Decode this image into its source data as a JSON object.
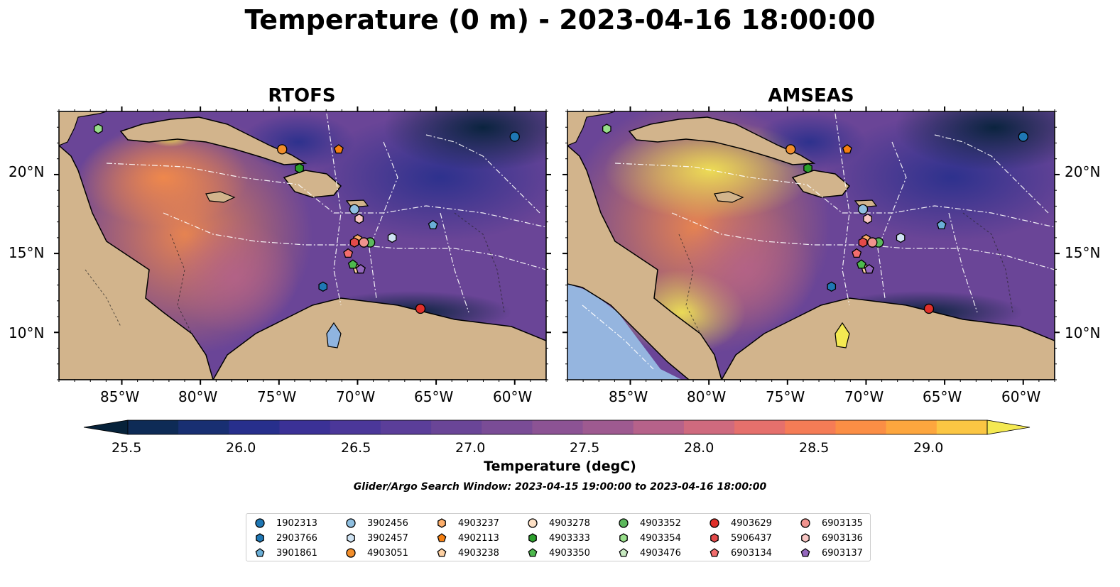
{
  "title": "Temperature (0 m) - 2023-04-16 18:00:00",
  "panels": [
    {
      "title": "RTOFS"
    },
    {
      "title": "AMSEAS"
    }
  ],
  "lat_labels": [
    "20°N",
    "15°N",
    "10°N"
  ],
  "lon_labels": [
    "85°W",
    "80°W",
    "75°W",
    "70°W",
    "65°W",
    "60°W"
  ],
  "map_extent": {
    "lon": [
      -89,
      -58
    ],
    "lat": [
      7,
      24
    ]
  },
  "colorbar": {
    "label": "Temperature (degC)",
    "range": [
      25.25,
      29.25
    ],
    "ticks": [
      "25.5",
      "26.0",
      "26.5",
      "27.0",
      "27.5",
      "28.0",
      "28.5",
      "29.0"
    ],
    "colors": [
      "#06223a",
      "#0e2b56",
      "#182f72",
      "#272f8c",
      "#3b3196",
      "#4b3799",
      "#5b3e99",
      "#6a4597",
      "#7a4c96",
      "#8c5394",
      "#9e5a90",
      "#b6628a",
      "#cf6a7e",
      "#e5706c",
      "#f57c56",
      "#fb8e45",
      "#fda63e",
      "#fbc643",
      "#f4e952"
    ],
    "extend": "both"
  },
  "search_window": "Glider/Argo Search Window: 2023-04-15 19:00:00 to 2023-04-16 18:00:00",
  "markers": [
    {
      "id": "1902313",
      "shape": "circle",
      "color": "#1f77b4",
      "lon": -60.0,
      "lat": 22.4
    },
    {
      "id": "2903766",
      "shape": "hexagon",
      "color": "#1f77b4",
      "lon": -72.2,
      "lat": 12.9
    },
    {
      "id": "3901861",
      "shape": "pentagon",
      "color": "#6aaed6",
      "lon": -65.2,
      "lat": 16.8
    },
    {
      "id": "3902456",
      "shape": "circle",
      "color": "#8fbfe0",
      "lon": -70.2,
      "lat": 17.8
    },
    {
      "id": "3902457",
      "shape": "hexagon",
      "color": "#cfe3f3",
      "lon": -67.8,
      "lat": 16.0
    },
    {
      "id": "4903051",
      "shape": "circle",
      "color": "#f28e2b",
      "lon": -74.8,
      "lat": 21.6
    },
    {
      "id": "4903237",
      "shape": "hexagon",
      "color": "#fdae6b",
      "lon": -70.0,
      "lat": 15.9
    },
    {
      "id": "4902113",
      "shape": "pentagon",
      "color": "#f57f11",
      "lon": -71.2,
      "lat": 21.6
    },
    {
      "id": "4903238",
      "shape": "pentagon",
      "color": "#fdd0a2",
      "lon": -70.0,
      "lat": 14.0
    },
    {
      "id": "4903278",
      "shape": "circle",
      "color": "#fde0c5",
      "lon": -69.6,
      "lat": 15.7
    },
    {
      "id": "4903333",
      "shape": "hexagon",
      "color": "#2ca02c",
      "lon": -73.7,
      "lat": 20.4
    },
    {
      "id": "4903350",
      "shape": "pentagon",
      "color": "#4db84d",
      "lon": -70.3,
      "lat": 14.3
    },
    {
      "id": "4903352",
      "shape": "circle",
      "color": "#5cb85c",
      "lon": -69.2,
      "lat": 15.7
    },
    {
      "id": "4903354",
      "shape": "hexagon",
      "color": "#98df8a",
      "lon": -86.5,
      "lat": 22.9
    },
    {
      "id": "4903476",
      "shape": "pentagon",
      "color": "#c7e9c0",
      "lon": -69.8,
      "lat": 14.0
    },
    {
      "id": "4903629",
      "shape": "circle",
      "color": "#e0302a",
      "lon": -66.0,
      "lat": 11.5
    },
    {
      "id": "5906437",
      "shape": "hexagon",
      "color": "#e34a4a",
      "lon": -70.2,
      "lat": 15.7
    },
    {
      "id": "6903134",
      "shape": "pentagon",
      "color": "#f26d6d",
      "lon": -70.6,
      "lat": 15.0
    },
    {
      "id": "6903135",
      "shape": "circle",
      "color": "#f0938e",
      "lon": -69.6,
      "lat": 15.7
    },
    {
      "id": "6903136",
      "shape": "hexagon",
      "color": "#f8c6c3",
      "lon": -69.9,
      "lat": 17.2
    },
    {
      "id": "6903137",
      "shape": "pentagon",
      "color": "#9467bd",
      "lon": -69.8,
      "lat": 14.0
    }
  ]
}
